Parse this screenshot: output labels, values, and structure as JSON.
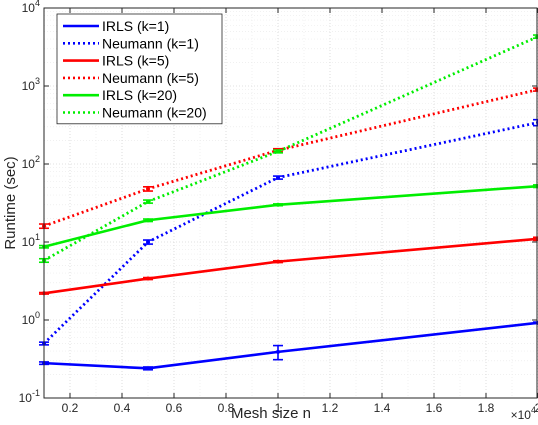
{
  "chart_data": {
    "type": "line",
    "title": "",
    "xlabel": "Mesh size n",
    "ylabel": "Runtime (sec)",
    "x_multiplier_label": {
      "base": "×10",
      "exp": "4"
    },
    "xscale": "linear",
    "yscale": "log",
    "xlim": [
      0.1,
      2.0
    ],
    "ylim": [
      0.1,
      10000
    ],
    "grid": true,
    "legend_position": "top-left",
    "x_ticks": [
      {
        "v": 0.2,
        "label": "0.2"
      },
      {
        "v": 0.4,
        "label": "0.4"
      },
      {
        "v": 0.6,
        "label": "0.6"
      },
      {
        "v": 0.8,
        "label": "0.8"
      },
      {
        "v": 1.0,
        "label": "1"
      },
      {
        "v": 1.2,
        "label": "1.2"
      },
      {
        "v": 1.4,
        "label": "1.4"
      },
      {
        "v": 1.6,
        "label": "1.6"
      },
      {
        "v": 1.8,
        "label": "1.8"
      },
      {
        "v": 2.0,
        "label": "2"
      }
    ],
    "y_ticks": [
      {
        "v": 0.1,
        "base": "10",
        "exp": "-1"
      },
      {
        "v": 1,
        "base": "10",
        "exp": "0"
      },
      {
        "v": 10,
        "base": "10",
        "exp": "1"
      },
      {
        "v": 100,
        "base": "10",
        "exp": "2"
      },
      {
        "v": 1000,
        "base": "10",
        "exp": "3"
      },
      {
        "v": 10000,
        "base": "10",
        "exp": "4"
      }
    ],
    "x": [
      0.1,
      0.5,
      1.0,
      2.0
    ],
    "series": [
      {
        "name": "IRLS (k=1)",
        "color": "#0000ff",
        "style": "solid",
        "values": [
          0.28,
          0.24,
          0.39,
          0.92
        ],
        "err_low": [
          0.27,
          0.23,
          0.31,
          0.9
        ],
        "err_high": [
          0.29,
          0.25,
          0.47,
          0.94
        ]
      },
      {
        "name": "Neumann (k=1)",
        "color": "#0000ff",
        "style": "dotted",
        "values": [
          0.5,
          10,
          67,
          340
        ],
        "err_low": [
          0.48,
          9.4,
          64,
          310
        ],
        "err_high": [
          0.52,
          10.6,
          70,
          370
        ]
      },
      {
        "name": "IRLS (k=5)",
        "color": "#ff0000",
        "style": "solid",
        "values": [
          2.2,
          3.4,
          5.6,
          11
        ],
        "err_low": [
          2.15,
          3.3,
          5.45,
          10.5
        ],
        "err_high": [
          2.25,
          3.5,
          5.75,
          11.5
        ]
      },
      {
        "name": "Neumann (k=5)",
        "color": "#ff0000",
        "style": "dotted",
        "values": [
          16,
          48,
          150,
          900
        ],
        "err_low": [
          15,
          45,
          143,
          860
        ],
        "err_high": [
          17,
          51,
          157,
          940
        ]
      },
      {
        "name": "IRLS (k=20)",
        "color": "#00ee00",
        "style": "solid",
        "values": [
          8.7,
          19,
          30,
          52
        ],
        "err_low": [
          8.4,
          18.3,
          29.2,
          50
        ],
        "err_high": [
          9.0,
          19.7,
          30.8,
          54
        ]
      },
      {
        "name": "Neumann (k=20)",
        "color": "#00ee00",
        "style": "dotted",
        "values": [
          5.8,
          33,
          145,
          4300
        ],
        "err_low": [
          5.5,
          31.5,
          139,
          4100
        ],
        "err_high": [
          6.1,
          34.5,
          151,
          4500
        ]
      }
    ]
  }
}
